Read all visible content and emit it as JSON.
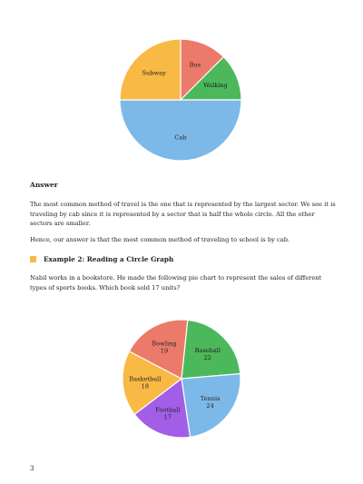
{
  "chart_data": [
    {
      "type": "pie",
      "slices": [
        {
          "label": "Bus",
          "value": 12.5,
          "color": "#ec7a6a"
        },
        {
          "label": "Walking",
          "value": 12.5,
          "color": "#4cb85c"
        },
        {
          "label": "Cab",
          "value": 50,
          "color": "#7db9e8"
        },
        {
          "label": "Subway",
          "value": 25,
          "color": "#f8b945"
        }
      ]
    },
    {
      "type": "pie",
      "slices": [
        {
          "label": "Baseball",
          "value": 22,
          "value_label": "22",
          "color": "#4cb85c"
        },
        {
          "label": "Tennis",
          "value": 24,
          "value_label": "24",
          "color": "#7db9e8"
        },
        {
          "label": "Football",
          "value": 17,
          "value_label": "17",
          "color": "#a35ee8"
        },
        {
          "label": "Basketball",
          "value": 18,
          "value_label": "18",
          "color": "#f8b945"
        },
        {
          "label": "Bowling",
          "value": 19,
          "value_label": "19",
          "color": "#ec7a6a"
        }
      ]
    }
  ],
  "answer": {
    "heading": "Answer",
    "paragraph1": "The most common method of travel is the one that is represented by the largest sector. We see it is traveling by cab since it is represented by a sector that is half the whole circle. All the other sectors are smaller.",
    "paragraph2": "Hence, our answer is that the most common method of traveling to school is by cab."
  },
  "example2": {
    "heading": "Example 2: Reading a Circle Graph",
    "bullet_color": "#f8b945",
    "paragraph": "Nabil works in a bookstore. He made the following pie chart to represent the sales of different types of sports books. Which book sold 17 units?"
  },
  "page_number": "3"
}
